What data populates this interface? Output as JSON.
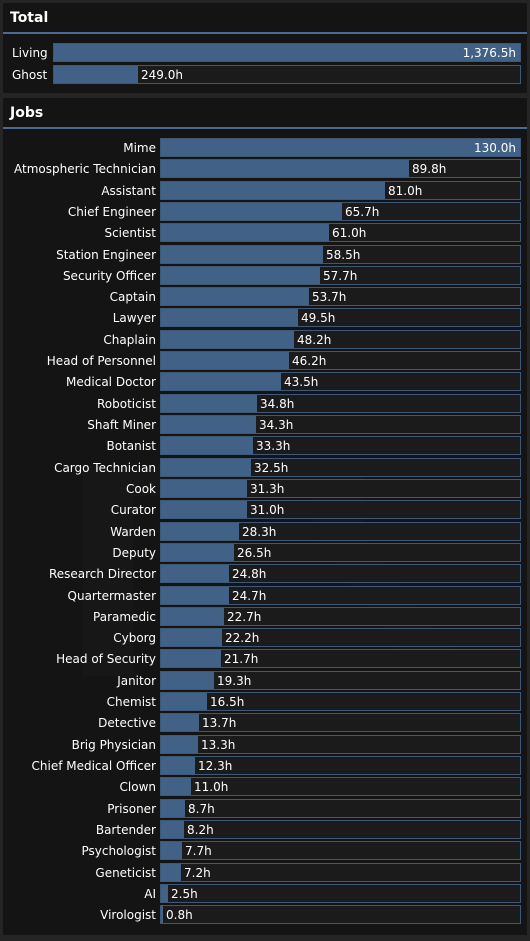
{
  "total": {
    "title": "Total",
    "max_hours": 1376.5,
    "rows": [
      {
        "label": "Living",
        "hours": 1376.5,
        "value_text": "1,376.5h"
      },
      {
        "label": "Ghost",
        "hours": 249.0,
        "value_text": "249.0h"
      }
    ]
  },
  "jobs": {
    "title": "Jobs",
    "max_hours": 130.0,
    "rows": [
      {
        "label": "Mime",
        "hours": 130.0,
        "value_text": "130.0h"
      },
      {
        "label": "Atmospheric Technician",
        "hours": 89.8,
        "value_text": "89.8h"
      },
      {
        "label": "Assistant",
        "hours": 81.0,
        "value_text": "81.0h"
      },
      {
        "label": "Chief Engineer",
        "hours": 65.7,
        "value_text": "65.7h"
      },
      {
        "label": "Scientist",
        "hours": 61.0,
        "value_text": "61.0h"
      },
      {
        "label": "Station Engineer",
        "hours": 58.5,
        "value_text": "58.5h"
      },
      {
        "label": "Security Officer",
        "hours": 57.7,
        "value_text": "57.7h"
      },
      {
        "label": "Captain",
        "hours": 53.7,
        "value_text": "53.7h"
      },
      {
        "label": "Lawyer",
        "hours": 49.5,
        "value_text": "49.5h"
      },
      {
        "label": "Chaplain",
        "hours": 48.2,
        "value_text": "48.2h"
      },
      {
        "label": "Head of Personnel",
        "hours": 46.2,
        "value_text": "46.2h"
      },
      {
        "label": "Medical Doctor",
        "hours": 43.5,
        "value_text": "43.5h"
      },
      {
        "label": "Roboticist",
        "hours": 34.8,
        "value_text": "34.8h"
      },
      {
        "label": "Shaft Miner",
        "hours": 34.3,
        "value_text": "34.3h"
      },
      {
        "label": "Botanist",
        "hours": 33.3,
        "value_text": "33.3h"
      },
      {
        "label": "Cargo Technician",
        "hours": 32.5,
        "value_text": "32.5h"
      },
      {
        "label": "Cook",
        "hours": 31.3,
        "value_text": "31.3h"
      },
      {
        "label": "Curator",
        "hours": 31.0,
        "value_text": "31.0h"
      },
      {
        "label": "Warden",
        "hours": 28.3,
        "value_text": "28.3h"
      },
      {
        "label": "Deputy",
        "hours": 26.5,
        "value_text": "26.5h"
      },
      {
        "label": "Research Director",
        "hours": 24.8,
        "value_text": "24.8h"
      },
      {
        "label": "Quartermaster",
        "hours": 24.7,
        "value_text": "24.7h"
      },
      {
        "label": "Paramedic",
        "hours": 22.7,
        "value_text": "22.7h"
      },
      {
        "label": "Cyborg",
        "hours": 22.2,
        "value_text": "22.2h"
      },
      {
        "label": "Head of Security",
        "hours": 21.7,
        "value_text": "21.7h"
      },
      {
        "label": "Janitor",
        "hours": 19.3,
        "value_text": "19.3h"
      },
      {
        "label": "Chemist",
        "hours": 16.5,
        "value_text": "16.5h"
      },
      {
        "label": "Detective",
        "hours": 13.7,
        "value_text": "13.7h"
      },
      {
        "label": "Brig Physician",
        "hours": 13.3,
        "value_text": "13.3h"
      },
      {
        "label": "Chief Medical Officer",
        "hours": 12.3,
        "value_text": "12.3h"
      },
      {
        "label": "Clown",
        "hours": 11.0,
        "value_text": "11.0h"
      },
      {
        "label": "Prisoner",
        "hours": 8.7,
        "value_text": "8.7h"
      },
      {
        "label": "Bartender",
        "hours": 8.2,
        "value_text": "8.2h"
      },
      {
        "label": "Psychologist",
        "hours": 7.7,
        "value_text": "7.7h"
      },
      {
        "label": "Geneticist",
        "hours": 7.2,
        "value_text": "7.2h"
      },
      {
        "label": "AI",
        "hours": 2.5,
        "value_text": "2.5h"
      },
      {
        "label": "Virologist",
        "hours": 0.8,
        "value_text": "0.8h"
      }
    ]
  },
  "theme": {
    "panel_background": "#141414",
    "bar_fill": "#416187",
    "bar_track": "#1b1b1b",
    "bar_border": "#3e5877",
    "divider": "#4a6a94",
    "text": "#ffffff"
  }
}
